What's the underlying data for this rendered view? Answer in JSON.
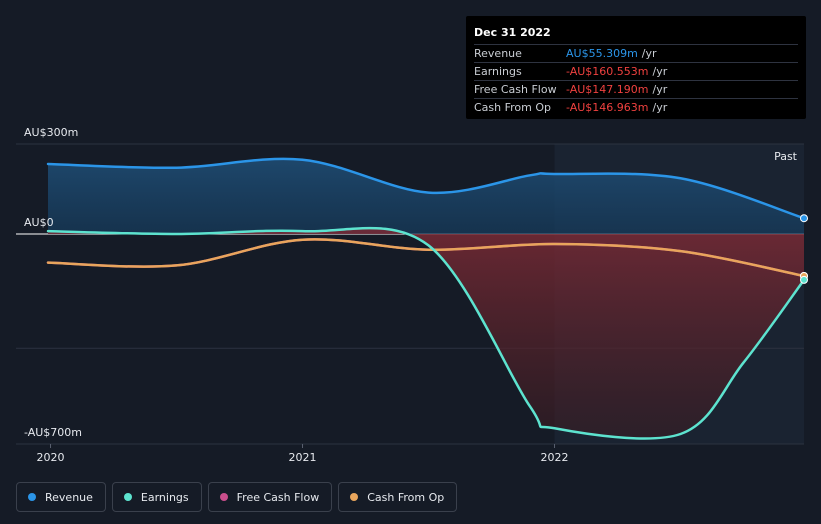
{
  "chart_data": {
    "type": "line",
    "y_axis_labels": [
      "AU$300m",
      "AU$0",
      "-AU$700m"
    ],
    "ylim": [
      -700,
      300
    ],
    "x_ticks": [
      {
        "label": "2020",
        "x": 2020.0
      },
      {
        "label": "2021",
        "x": 2021.0
      },
      {
        "label": "2022",
        "x": 2022.0
      }
    ],
    "xlim": [
      2019.99,
      2022.99
    ],
    "past_label": "Past",
    "series": [
      {
        "name": "Revenue",
        "color": "#2b95e8",
        "points": [
          [
            2019.99,
            245
          ],
          [
            2020.5,
            232
          ],
          [
            2021.0,
            260
          ],
          [
            2021.5,
            145
          ],
          [
            2021.9,
            205
          ],
          [
            2022.0,
            210
          ],
          [
            2022.5,
            195
          ],
          [
            2022.99,
            55.309
          ]
        ]
      },
      {
        "name": "Earnings",
        "color": "#5de3cf",
        "points": [
          [
            2019.99,
            10
          ],
          [
            2020.5,
            0
          ],
          [
            2021.0,
            10
          ],
          [
            2021.5,
            -40
          ],
          [
            2021.9,
            -600
          ],
          [
            2022.0,
            -680
          ],
          [
            2022.5,
            -700
          ],
          [
            2022.75,
            -450
          ],
          [
            2022.99,
            -160.553
          ]
        ]
      },
      {
        "name": "Free Cash Flow",
        "color": "#c94e8c",
        "points": [
          [
            2019.99,
            -100
          ],
          [
            2020.5,
            -110
          ],
          [
            2021.0,
            -20
          ],
          [
            2021.5,
            -55
          ],
          [
            2022.0,
            -35
          ],
          [
            2022.5,
            -60
          ],
          [
            2022.99,
            -147.19
          ]
        ]
      },
      {
        "name": "Cash From Op",
        "color": "#e8a55c",
        "points": [
          [
            2019.99,
            -100
          ],
          [
            2020.5,
            -110
          ],
          [
            2021.0,
            -20
          ],
          [
            2021.5,
            -55
          ],
          [
            2022.0,
            -35
          ],
          [
            2022.5,
            -60
          ],
          [
            2022.99,
            -146.963
          ]
        ]
      }
    ]
  },
  "tooltip": {
    "date": "Dec 31 2022",
    "rows": [
      {
        "label": "Revenue",
        "value": "AU$55.309m",
        "unit": "/yr",
        "color": "#2b95e8"
      },
      {
        "label": "Earnings",
        "value": "-AU$160.553m",
        "unit": "/yr",
        "color": "#f0413f"
      },
      {
        "label": "Free Cash Flow",
        "value": "-AU$147.190m",
        "unit": "/yr",
        "color": "#f0413f"
      },
      {
        "label": "Cash From Op",
        "value": "-AU$146.963m",
        "unit": "/yr",
        "color": "#f0413f"
      }
    ]
  },
  "legend": [
    {
      "label": "Revenue",
      "color": "#2b95e8"
    },
    {
      "label": "Earnings",
      "color": "#5de3cf"
    },
    {
      "label": "Free Cash Flow",
      "color": "#c94e8c"
    },
    {
      "label": "Cash From Op",
      "color": "#e8a55c"
    }
  ]
}
